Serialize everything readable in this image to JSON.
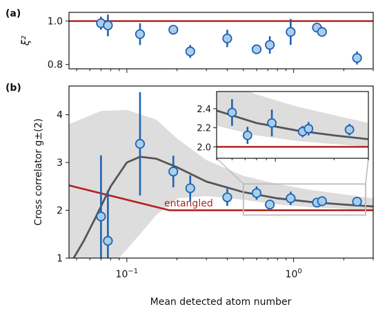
{
  "colors": {
    "threshold": "#b22222",
    "points_fill": "#a9cdec",
    "points_edge": "#1f62b0",
    "curve": "#555555",
    "band": "#dddddd",
    "box": "#bbbbbb"
  },
  "chart_data": [
    {
      "panel_label": "(a)",
      "type": "scatter",
      "ylabel": "ξ²",
      "xscale": "log",
      "xlim": [
        0.045,
        3.0
      ],
      "ylim": [
        0.78,
        1.04
      ],
      "yticks": [
        "0.8",
        "1.0"
      ],
      "x_tick_labels_shown": false,
      "threshold": 1.0,
      "points": [
        {
          "x": 0.07,
          "y": 0.99,
          "err": 0.03
        },
        {
          "x": 0.077,
          "y": 0.98,
          "err": 0.05
        },
        {
          "x": 0.12,
          "y": 0.94,
          "err": 0.05
        },
        {
          "x": 0.19,
          "y": 0.96,
          "err": 0.02
        },
        {
          "x": 0.24,
          "y": 0.86,
          "err": 0.03
        },
        {
          "x": 0.4,
          "y": 0.92,
          "err": 0.04
        },
        {
          "x": 0.6,
          "y": 0.87,
          "err": 0.02
        },
        {
          "x": 0.72,
          "y": 0.89,
          "err": 0.04
        },
        {
          "x": 0.96,
          "y": 0.95,
          "err": 0.06
        },
        {
          "x": 1.38,
          "y": 0.97,
          "err": 0.02
        },
        {
          "x": 1.48,
          "y": 0.95,
          "err": 0.02
        },
        {
          "x": 2.4,
          "y": 0.83,
          "err": 0.03
        }
      ]
    },
    {
      "panel_label": "(b)",
      "type": "scatter",
      "xlabel": "Mean detected atom number",
      "ylabel": "Cross correlator g±(2)",
      "xscale": "log",
      "xlim": [
        0.045,
        3.0
      ],
      "ylim": [
        1.0,
        4.6
      ],
      "yticks": [
        "1",
        "2",
        "3",
        "4"
      ],
      "xticks": [
        {
          "value": 0.1,
          "base": "10",
          "exp": "−1"
        },
        {
          "value": 1.0,
          "base": "10",
          "exp": "0"
        }
      ],
      "annotation": "entangled",
      "threshold": [
        [
          0.045,
          2.52
        ],
        [
          0.18,
          2.0
        ],
        [
          3.0,
          2.0
        ]
      ],
      "model_curve": [
        [
          0.048,
          1.0
        ],
        [
          0.055,
          1.35
        ],
        [
          0.065,
          1.85
        ],
        [
          0.08,
          2.5
        ],
        [
          0.1,
          3.0
        ],
        [
          0.12,
          3.12
        ],
        [
          0.15,
          3.08
        ],
        [
          0.2,
          2.9
        ],
        [
          0.3,
          2.6
        ],
        [
          0.5,
          2.38
        ],
        [
          0.8,
          2.25
        ],
        [
          1.3,
          2.17
        ],
        [
          2.0,
          2.12
        ],
        [
          3.0,
          2.08
        ]
      ],
      "model_band": {
        "upper": [
          [
            0.045,
            3.8
          ],
          [
            0.07,
            4.08
          ],
          [
            0.1,
            4.1
          ],
          [
            0.15,
            3.9
          ],
          [
            0.2,
            3.5
          ],
          [
            0.3,
            3.05
          ],
          [
            0.5,
            2.72
          ],
          [
            0.8,
            2.55
          ],
          [
            1.3,
            2.42
          ],
          [
            3.0,
            2.25
          ]
        ],
        "lower": [
          [
            0.045,
            1.0
          ],
          [
            0.09,
            1.0
          ],
          [
            0.12,
            1.5
          ],
          [
            0.15,
            1.9
          ],
          [
            0.2,
            2.25
          ],
          [
            0.3,
            2.3
          ],
          [
            0.5,
            2.22
          ],
          [
            0.8,
            2.12
          ],
          [
            1.3,
            2.06
          ],
          [
            3.0,
            2.0
          ]
        ]
      },
      "points": [
        {
          "x": 0.07,
          "y": 1.87,
          "err": 1.28
        },
        {
          "x": 0.077,
          "y": 1.36,
          "err": 1.06
        },
        {
          "x": 0.12,
          "y": 3.39,
          "err": 1.08
        },
        {
          "x": 0.19,
          "y": 2.81,
          "err": 0.33
        },
        {
          "x": 0.24,
          "y": 2.46,
          "err": 0.27
        },
        {
          "x": 0.4,
          "y": 2.27,
          "err": 0.18
        },
        {
          "x": 0.6,
          "y": 2.36,
          "err": 0.14
        },
        {
          "x": 0.72,
          "y": 2.12,
          "err": 0.09
        },
        {
          "x": 0.96,
          "y": 2.25,
          "err": 0.14
        },
        {
          "x": 1.38,
          "y": 2.16,
          "err": 0.06
        },
        {
          "x": 1.48,
          "y": 2.19,
          "err": 0.07
        },
        {
          "x": 2.4,
          "y": 2.18,
          "err": 0.06
        }
      ],
      "zoom_box": {
        "xlim": [
          0.5,
          2.7
        ],
        "ylim": [
          1.9,
          2.55
        ]
      },
      "inset": {
        "xlim": [
          0.5,
          3.0
        ],
        "ylim": [
          1.88,
          2.58
        ],
        "yticks": [
          "2.0",
          "2.2",
          "2.4"
        ]
      }
    }
  ]
}
